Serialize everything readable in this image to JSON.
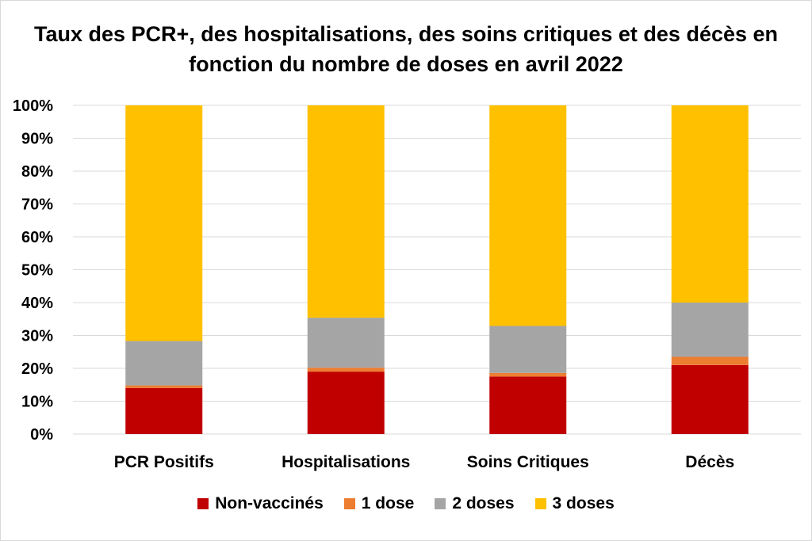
{
  "chart_data": {
    "type": "bar",
    "stacked": true,
    "title": "Taux des PCR+, des hospitalisations, des soins critiques et des décès en fonction du nombre de doses en avril 2022",
    "categories": [
      "PCR Positifs",
      "Hospitalisations",
      "Soins Critiques",
      "Décès"
    ],
    "series": [
      {
        "name": "Non-vaccinés",
        "color": "#c00000",
        "values": [
          14,
          19,
          17.5,
          21
        ]
      },
      {
        "name": "1 dose",
        "color": "#ed7d31",
        "values": [
          0.8,
          1.2,
          1.1,
          2.5
        ]
      },
      {
        "name": "2 doses",
        "color": "#a5a5a5",
        "values": [
          13.5,
          15.2,
          14.3,
          16.5
        ]
      },
      {
        "name": "3 doses",
        "color": "#ffc000",
        "values": [
          71.7,
          64.6,
          67.1,
          60
        ]
      }
    ],
    "ylim": [
      0,
      100
    ],
    "yticks": [
      "0%",
      "10%",
      "20%",
      "30%",
      "40%",
      "50%",
      "60%",
      "70%",
      "80%",
      "90%",
      "100%"
    ],
    "grid": true,
    "legend": "bottom"
  }
}
